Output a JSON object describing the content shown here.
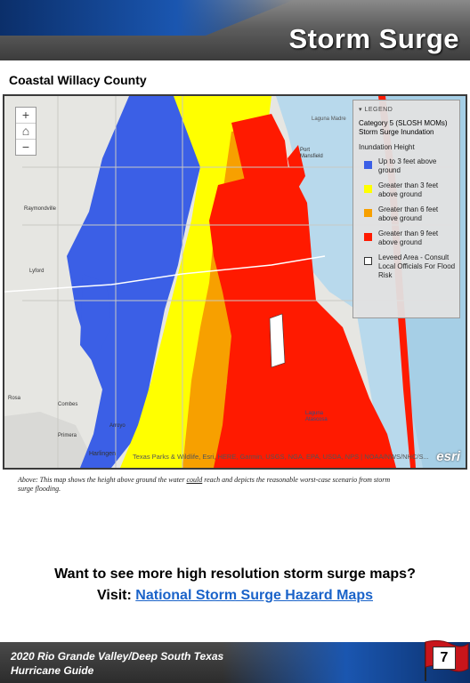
{
  "header": {
    "title": "Storm Surge",
    "brand_color": "#1a56b0"
  },
  "map_heading": "Coastal Willacy County",
  "map": {
    "zoom_in": "+",
    "zoom_out": "−",
    "home_icon": "home-icon",
    "place_labels": {
      "port_mansfield": "Port\nMansfield",
      "laguna_madre": "Laguna Madre",
      "raymondville": "Raymondville",
      "lyford": "Lyford",
      "rosa": "Rosa",
      "combes": "Combes",
      "primera": "Primera",
      "arroyo": "Arroyo",
      "harlingen": "Harlingen",
      "laguna_atascosa": "Laguna\nAtascosa"
    },
    "attribution": "Texas Parks & Wildlife, Esri, HERE, Garmin, USGS, NGA, EPA, USDA, NPS | NOAA/NWS/NHC/S...",
    "esri_logo": "esri",
    "legend": {
      "header": "LEGEND",
      "title": "Category 5 (SLOSH MOMs) Storm Surge Inundation",
      "subtitle": "Inundation Height",
      "items": [
        {
          "label": "Up to 3 feet above ground",
          "color": "#3b5fe6"
        },
        {
          "label": "Greater than 3 feet above ground",
          "color": "#ffff00"
        },
        {
          "label": "Greater than 6 feet above ground",
          "color": "#f7a000"
        },
        {
          "label": "Greater than 9 feet above ground",
          "color": "#ff1a00"
        },
        {
          "label": "Leveed Area - Consult Local Officials For Flood Risk",
          "color": "#ffffff"
        }
      ]
    }
  },
  "caption": {
    "before": "Above: This map shows the height above ground the water ",
    "emphasis": "could",
    "after": " reach and depicts the reasonable worst-case scenario from storm surge flooding."
  },
  "cta": {
    "line1": "Want to see more high resolution storm surge maps?",
    "visit_label": "Visit:",
    "link_text": "National Storm Surge Hazard Maps"
  },
  "footer": {
    "line1": "2020 Rio Grande Valley/Deep South Texas",
    "line2": "Hurricane Guide",
    "page_number": "7"
  }
}
